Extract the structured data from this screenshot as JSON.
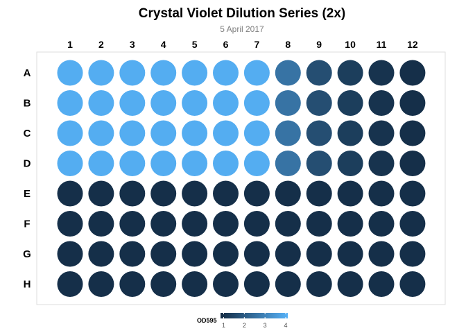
{
  "chart_data": {
    "type": "heatmap",
    "title": "Crystal Violet Dilution Series (2x)",
    "subtitle": "5 April 2017",
    "columns": [
      "1",
      "2",
      "3",
      "4",
      "5",
      "6",
      "7",
      "8",
      "9",
      "10",
      "11",
      "12"
    ],
    "rows": [
      "A",
      "B",
      "C",
      "D",
      "E",
      "F",
      "G",
      "H"
    ],
    "values": [
      [
        4.0,
        4.0,
        4.0,
        4.0,
        4.0,
        4.0,
        4.0,
        2.6,
        1.7,
        1.3,
        1.05,
        0.95
      ],
      [
        4.0,
        4.0,
        4.0,
        4.0,
        4.0,
        4.0,
        4.0,
        2.6,
        1.7,
        1.3,
        1.05,
        0.95
      ],
      [
        4.0,
        4.0,
        4.0,
        4.0,
        4.0,
        4.0,
        4.0,
        2.6,
        1.7,
        1.3,
        1.05,
        0.95
      ],
      [
        4.0,
        4.0,
        4.0,
        4.0,
        4.0,
        4.0,
        4.0,
        2.6,
        1.7,
        1.3,
        1.05,
        0.95
      ],
      [
        0.95,
        0.95,
        0.95,
        0.95,
        0.95,
        0.95,
        0.95,
        0.95,
        0.95,
        0.95,
        0.95,
        0.95
      ],
      [
        0.95,
        0.95,
        0.95,
        0.95,
        0.95,
        0.95,
        0.95,
        0.95,
        0.95,
        0.95,
        0.95,
        0.95
      ],
      [
        0.95,
        0.95,
        0.95,
        0.95,
        0.95,
        0.95,
        0.95,
        0.95,
        0.95,
        0.95,
        0.95,
        0.95
      ],
      [
        0.95,
        0.95,
        0.95,
        0.95,
        0.95,
        0.95,
        0.95,
        0.95,
        0.95,
        0.95,
        0.95,
        0.95
      ]
    ],
    "legend": {
      "title": "OD595",
      "ticks": [
        "1",
        "2",
        "3",
        "4"
      ],
      "tick_values": [
        1,
        2,
        3,
        4
      ],
      "range": [
        0.85,
        4.1
      ],
      "position": "bottom"
    },
    "color_low": "#132b43",
    "color_high": "#56b1f7"
  }
}
